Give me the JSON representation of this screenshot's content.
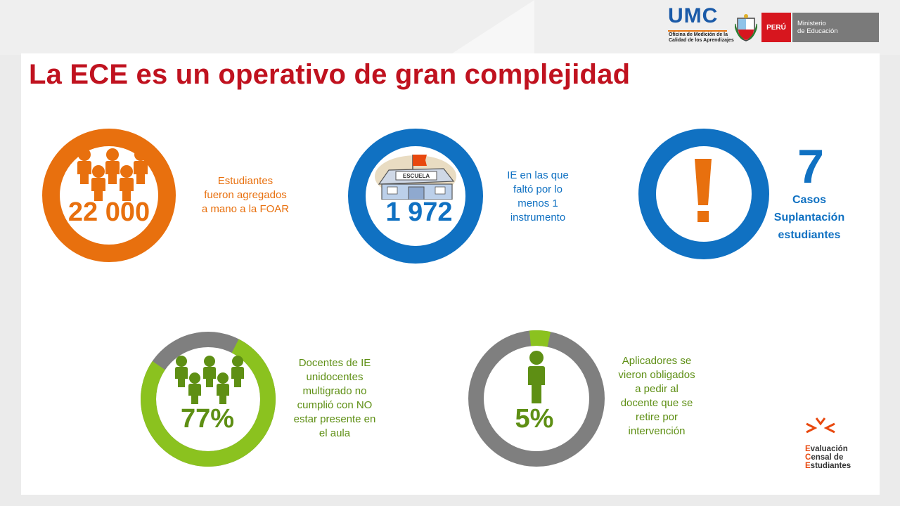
{
  "slide": {
    "title": "La ECE es un operativo de gran complejidad"
  },
  "header": {
    "umc_word": "UMC",
    "umc_sub_line1": "Oficina de Medición de la",
    "umc_sub_line2": "Calidad de los Aprendizajes",
    "peru_label": "PERÚ",
    "ministry_line1": "Ministerio",
    "ministry_line2": "de Educación"
  },
  "stats": {
    "students": {
      "value": "22 000",
      "caption": [
        "Estudiantes",
        "fueron agregados",
        "a mano a la FOAR"
      ],
      "color": "#e8700e",
      "icon": "group-people-icon"
    },
    "schools": {
      "value": "1 972",
      "school_sign": "ESCUELA",
      "caption": [
        "IE en las que",
        "faltó por lo",
        "menos 1",
        "instrumento"
      ],
      "color": "#1071c2",
      "icon": "school-icon"
    },
    "impersonation": {
      "value": "7",
      "caption": [
        "Casos",
        "Suplantación",
        "estudiantes"
      ],
      "ring_color": "#1071c2",
      "mark_color": "#e8700e",
      "icon": "exclamation-icon"
    },
    "teachers": {
      "value": "77%",
      "percent": 77,
      "caption": [
        "Docentes de IE",
        "unidocentes",
        "multigrado no",
        "cumplió con NO",
        "estar presente en",
        "el aula"
      ],
      "color": "#8bc21f",
      "rest_color": "#7f7f7f",
      "text_color": "#5e8f14",
      "icon": "group-people-icon"
    },
    "applicators": {
      "value": "5%",
      "percent": 5,
      "caption": [
        "Aplicadores se",
        "vieron obligados",
        "a pedir al",
        "docente que se",
        "retire por",
        "intervención"
      ],
      "color": "#8bc21f",
      "rest_color": "#7f7f7f",
      "text_color": "#5e8f14",
      "icon": "person-icon"
    }
  },
  "footer_logo": {
    "line1_first": "E",
    "line1_rest": "valuación",
    "line2_first": "C",
    "line2_rest": "ensal de",
    "line3_first": "E",
    "line3_rest": "studiantes"
  }
}
